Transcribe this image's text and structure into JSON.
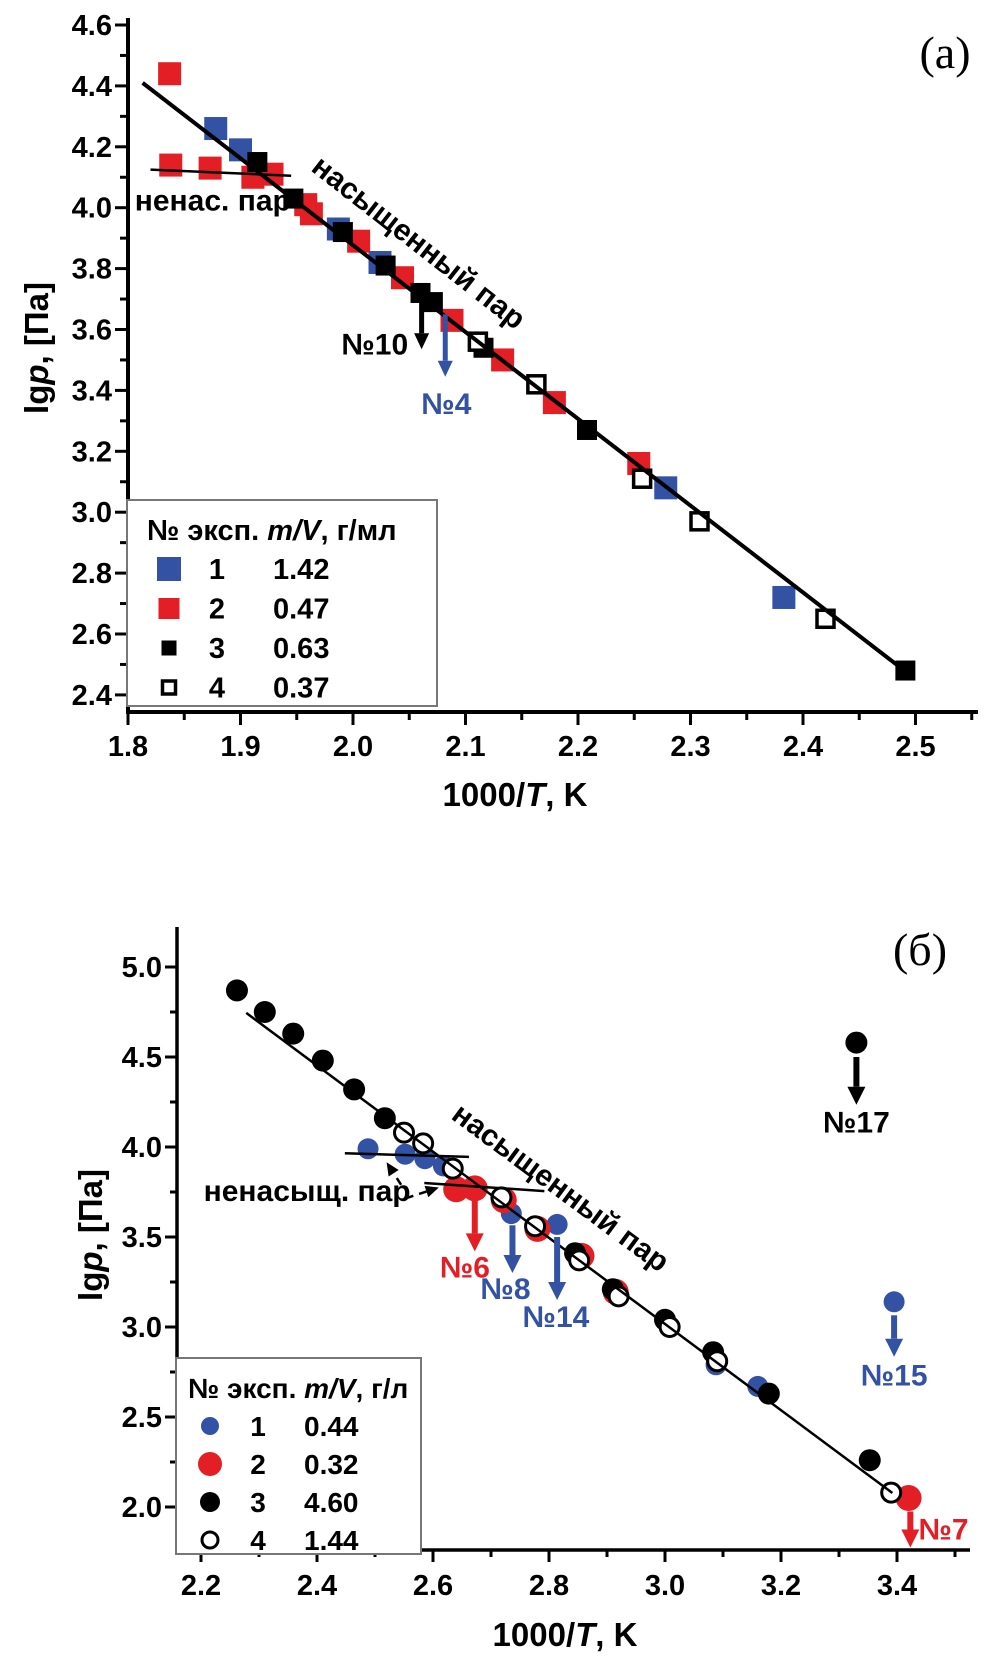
{
  "page": {
    "background": "#ffffff"
  },
  "chart_data": [
    {
      "id": "a",
      "type": "scatter",
      "panel_label": "(a)",
      "xlabel": "1000/T, K",
      "ylabel": "lgp, [Па]",
      "xlabel_parts": [
        {
          "t": "1000/"
        },
        {
          "t": "T",
          "i": 1
        },
        {
          "t": ", K"
        }
      ],
      "ylabel_parts": [
        {
          "t": "lg"
        },
        {
          "t": "p",
          "i": 1
        },
        {
          "t": ", [Па]"
        }
      ],
      "xlim": [
        1.8,
        2.555
      ],
      "ylim": [
        2.344,
        4.62
      ],
      "x_ticks": {
        "major": [
          1.8,
          1.9,
          2.0,
          2.1,
          2.2,
          2.3,
          2.4,
          2.5
        ],
        "labels": [
          "1.8",
          "1.9",
          "2.0",
          "2.1",
          "2.2",
          "2.3",
          "2.4",
          "2.5"
        ],
        "minor": [
          1.85,
          1.95,
          2.05,
          2.15,
          2.25,
          2.35,
          2.45,
          2.55
        ]
      },
      "y_ticks": {
        "major": [
          2.4,
          2.6,
          2.8,
          3.0,
          3.2,
          3.4,
          3.6,
          3.8,
          4.0,
          4.2,
          4.4,
          4.6
        ],
        "labels": [
          "2.4",
          "2.6",
          "2.8",
          "3.0",
          "3.2",
          "3.4",
          "3.6",
          "3.8",
          "4.0",
          "4.2",
          "4.4",
          "4.6"
        ],
        "minor": [
          2.5,
          2.7,
          2.9,
          3.1,
          3.3,
          3.5,
          3.7,
          3.9,
          4.1,
          4.3,
          4.5
        ]
      },
      "series": [
        {
          "num": "1",
          "mv": "1.42",
          "marker": "square",
          "color": "#3352a3",
          "size": 23,
          "points": [
            [
              1.878,
              4.26
            ],
            [
              1.9,
              4.19
            ],
            [
              1.987,
              3.93
            ],
            [
              2.024,
              3.82
            ],
            [
              2.278,
              3.08
            ],
            [
              2.383,
              2.72
            ]
          ]
        },
        {
          "num": "2",
          "mv": "0.47",
          "marker": "square",
          "color": "#e31e24",
          "size": 23,
          "points": [
            [
              1.837,
              4.44
            ],
            [
              1.838,
              4.14
            ],
            [
              1.873,
              4.13
            ],
            [
              1.911,
              4.1
            ],
            [
              1.928,
              4.11
            ],
            [
              1.958,
              4.01
            ],
            [
              1.963,
              3.98
            ],
            [
              2.005,
              3.89
            ],
            [
              2.044,
              3.77
            ],
            [
              2.088,
              3.63
            ],
            [
              2.133,
              3.5
            ],
            [
              2.179,
              3.36
            ],
            [
              2.254,
              3.16
            ]
          ]
        },
        {
          "num": "3",
          "mv": "0.63",
          "marker": "square",
          "color": "#000000",
          "size": 20,
          "points": [
            [
              1.915,
              4.15
            ],
            [
              1.947,
              4.03
            ],
            [
              1.991,
              3.92
            ],
            [
              2.029,
              3.81
            ],
            [
              2.06,
              3.72
            ],
            [
              2.071,
              3.69
            ],
            [
              2.116,
              3.54
            ],
            [
              2.208,
              3.27
            ],
            [
              2.491,
              2.48
            ]
          ]
        },
        {
          "num": "4",
          "mv": "0.37",
          "marker": "square-open",
          "color": "#000000",
          "size": 17,
          "points": [
            [
              2.111,
              3.56
            ],
            [
              2.163,
              3.42
            ],
            [
              2.257,
              3.11
            ],
            [
              2.308,
              2.97
            ],
            [
              2.42,
              2.65
            ]
          ]
        }
      ],
      "fit_lines": [
        {
          "x1": 1.813,
          "y1": 4.41,
          "x2": 2.497,
          "y2": 2.46,
          "w": 4
        },
        {
          "x1": 1.82,
          "y1": 4.125,
          "x2": 1.945,
          "y2": 4.105,
          "w": 2.5
        }
      ],
      "texts": [
        {
          "text": "ненас. пар",
          "x": 1.806,
          "y": 3.99,
          "anchor": "start",
          "rotate": 0,
          "color": "#000000"
        },
        {
          "text": "насыщенный пар",
          "x": 2.053,
          "y": 3.86,
          "anchor": "middle",
          "rotate": 38,
          "color": "#000000"
        }
      ],
      "arrows": [
        {
          "label": "№10",
          "color": "#000000",
          "x": 2.061,
          "y1": 3.7,
          "y2": 3.535,
          "label_x": 2.049,
          "label_y": 3.55,
          "label_anchor": "end"
        },
        {
          "label": "№4",
          "color": "#3352a3",
          "x": 2.082,
          "y1": 3.65,
          "y2": 3.445,
          "label_x": 2.083,
          "label_y": 3.355,
          "label_anchor": "middle"
        }
      ],
      "dashed_arrows": [],
      "legend": {
        "header": "№ эксп. m/V, г/мл",
        "header_parts": [
          {
            "t": "№ эксп. "
          },
          {
            "t": "m/V",
            "i": 1
          },
          {
            "t": ", г/мл"
          }
        ],
        "rows": [
          {
            "num": "1",
            "value": "1.42"
          },
          {
            "num": "2",
            "value": "0.47"
          },
          {
            "num": "3",
            "value": "0.63"
          },
          {
            "num": "4",
            "value": "0.37"
          }
        ]
      }
    },
    {
      "id": "b",
      "type": "scatter",
      "panel_label": "(б)",
      "xlabel": "1000/T, K",
      "ylabel": "lgp, [Па]",
      "xlabel_parts": [
        {
          "t": "1000/"
        },
        {
          "t": "T",
          "i": 1
        },
        {
          "t": ", K"
        }
      ],
      "ylabel_parts": [
        {
          "t": "lg"
        },
        {
          "t": "p",
          "i": 1
        },
        {
          "t": ", [Па]"
        }
      ],
      "xlim": [
        2.159,
        3.526
      ],
      "ylim": [
        1.76,
        5.22
      ],
      "x_ticks": {
        "major": [
          2.2,
          2.4,
          2.6,
          2.8,
          3.0,
          3.2,
          3.4
        ],
        "labels": [
          "2.2",
          "2.4",
          "2.6",
          "2.8",
          "3.0",
          "3.2",
          "3.4"
        ],
        "minor": [
          2.3,
          2.5,
          2.7,
          2.9,
          3.1,
          3.3,
          3.5
        ]
      },
      "y_ticks": {
        "major": [
          2.0,
          2.5,
          3.0,
          3.5,
          4.0,
          4.5,
          5.0
        ],
        "labels": [
          "2.0",
          "2.5",
          "3.0",
          "3.5",
          "4.0",
          "4.5",
          "5.0"
        ],
        "minor": [
          2.25,
          2.75,
          3.25,
          3.75,
          4.25,
          4.75
        ]
      },
      "series": [
        {
          "num": "1",
          "mv": "0.44",
          "marker": "circle",
          "color": "#3352a3",
          "size": 10.5,
          "points": [
            [
              2.488,
              3.99
            ],
            [
              2.552,
              3.96
            ],
            [
              2.586,
              3.935
            ],
            [
              2.618,
              3.895
            ],
            [
              2.735,
              3.63
            ],
            [
              2.814,
              3.57
            ],
            [
              3.088,
              2.79
            ],
            [
              3.16,
              2.67
            ],
            [
              3.395,
              3.14
            ]
          ]
        },
        {
          "num": "2",
          "mv": "0.32",
          "marker": "circle",
          "color": "#e31e24",
          "size": 13,
          "points": [
            [
              2.64,
              3.765
            ],
            [
              2.672,
              3.77
            ],
            [
              2.722,
              3.705
            ],
            [
              2.78,
              3.545
            ],
            [
              2.856,
              3.395
            ],
            [
              2.915,
              3.195
            ],
            [
              3.42,
              2.05
            ]
          ]
        },
        {
          "num": "3",
          "mv": "4.60",
          "marker": "circle",
          "color": "#000000",
          "size": 11,
          "points": [
            [
              2.262,
              4.87
            ],
            [
              2.31,
              4.75
            ],
            [
              2.359,
              4.63
            ],
            [
              2.41,
              4.48
            ],
            [
              2.464,
              4.32
            ],
            [
              2.517,
              4.16
            ],
            [
              2.845,
              3.41
            ],
            [
              2.91,
              3.21
            ],
            [
              3.0,
              3.04
            ],
            [
              3.083,
              2.86
            ],
            [
              3.179,
              2.63
            ],
            [
              3.353,
              2.26
            ],
            [
              3.33,
              4.58
            ]
          ]
        },
        {
          "num": "4",
          "mv": "1.44",
          "marker": "circle-open",
          "color": "#000000",
          "size": 9.5,
          "points": [
            [
              2.55,
              4.08
            ],
            [
              2.583,
              4.02
            ],
            [
              2.634,
              3.88
            ],
            [
              2.718,
              3.72
            ],
            [
              2.776,
              3.56
            ],
            [
              2.852,
              3.37
            ],
            [
              2.92,
              3.17
            ],
            [
              3.008,
              3.0
            ],
            [
              3.09,
              2.81
            ],
            [
              3.39,
              2.08
            ]
          ]
        }
      ],
      "fit_lines": [
        {
          "x1": 2.278,
          "y1": 4.745,
          "x2": 3.392,
          "y2": 2.078,
          "w": 2.5
        },
        {
          "x1": 2.448,
          "y1": 3.965,
          "x2": 2.662,
          "y2": 3.945,
          "w": 2.5
        },
        {
          "x1": 2.585,
          "y1": 3.8,
          "x2": 2.792,
          "y2": 3.755,
          "w": 2.5
        }
      ],
      "texts": [
        {
          "text": "ненасыщ. пар",
          "x": 2.383,
          "y": 3.7,
          "anchor": "middle",
          "rotate": 0,
          "color": "#000000"
        },
        {
          "text": "насыщенный пар",
          "x": 2.81,
          "y": 3.73,
          "anchor": "middle",
          "rotate": 36.5,
          "color": "#000000"
        }
      ],
      "arrows": [
        {
          "label": "№6",
          "color": "#e31e24",
          "x": 2.672,
          "y1": 3.715,
          "y2": 3.42,
          "label_x": 2.655,
          "label_y": 3.33,
          "label_anchor": "middle"
        },
        {
          "label": "№8",
          "color": "#3352a3",
          "x": 2.737,
          "y1": 3.565,
          "y2": 3.3,
          "label_x": 2.725,
          "label_y": 3.21,
          "label_anchor": "middle"
        },
        {
          "label": "№14",
          "color": "#3352a3",
          "x": 2.814,
          "y1": 3.5,
          "y2": 3.15,
          "label_x": 2.812,
          "label_y": 3.055,
          "label_anchor": "middle"
        },
        {
          "label": "№17",
          "color": "#000000",
          "x": 3.33,
          "y1": 4.5,
          "y2": 4.235,
          "label_x": 3.33,
          "label_y": 4.135,
          "label_anchor": "middle"
        },
        {
          "label": "№15",
          "color": "#3352a3",
          "x": 3.395,
          "y1": 3.065,
          "y2": 2.835,
          "label_x": 3.395,
          "label_y": 2.73,
          "label_anchor": "middle"
        },
        {
          "label": "№7",
          "color": "#e31e24",
          "x": 3.423,
          "y1": 1.975,
          "y2": 1.775,
          "label_x": 3.437,
          "label_y": 1.875,
          "label_anchor": "start"
        }
      ],
      "dashed_arrows": [
        {
          "x1": 2.545,
          "y1": 3.79,
          "x2": 2.52,
          "y2": 3.915
        },
        {
          "x1": 2.553,
          "y1": 3.715,
          "x2": 2.61,
          "y2": 3.775
        }
      ],
      "legend": {
        "header": "№ эксп. m/V, г/л",
        "header_parts": [
          {
            "t": "№ эксп. "
          },
          {
            "t": "m/V",
            "i": 1
          },
          {
            "t": ", г/л"
          }
        ],
        "rows": [
          {
            "num": "1",
            "value": "0.44"
          },
          {
            "num": "2",
            "value": "0.32"
          },
          {
            "num": "3",
            "value": "4.60"
          },
          {
            "num": "4",
            "value": "1.44"
          }
        ]
      }
    }
  ]
}
